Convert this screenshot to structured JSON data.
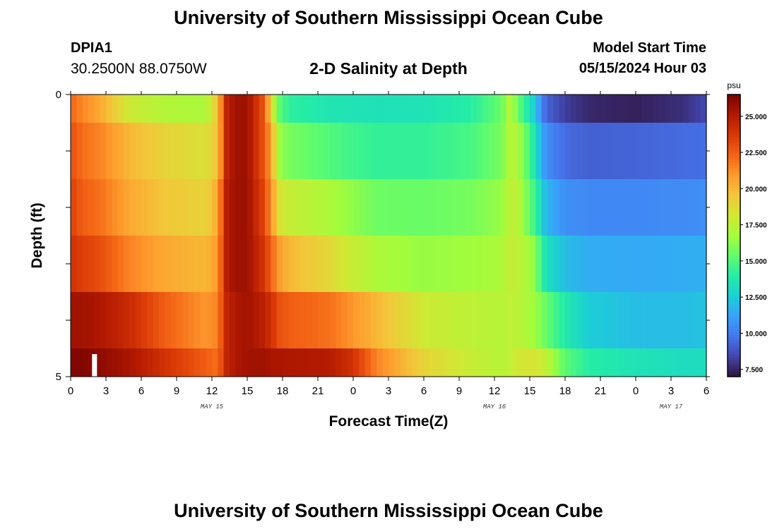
{
  "header": {
    "title": "University of Southern Mississippi Ocean Cube",
    "station_id": "DPIA1",
    "station_coords": "30.2500N  88.0750W",
    "plot_title": "2-D Salinity at Depth",
    "model_start_label": "Model Start Time",
    "model_start_value": "05/15/2024 Hour 03"
  },
  "footer": {
    "title": "University of Southern Mississippi Ocean Cube"
  },
  "chart_data": {
    "type": "heatmap",
    "title": "2-D Salinity at Depth",
    "xlabel": "Forecast Time(Z)",
    "ylabel": "Depth (ft)",
    "x_unit": "hours since 05/15/2024 00Z",
    "xlim": [
      0,
      54
    ],
    "x_ticks": [
      0,
      3,
      6,
      9,
      12,
      15,
      18,
      21,
      24,
      27,
      30,
      33,
      36,
      39,
      42,
      45,
      48,
      51,
      54
    ],
    "x_tick_labels": [
      "0",
      "3",
      "6",
      "9",
      "12",
      "15",
      "18",
      "21",
      "0",
      "3",
      "6",
      "9",
      "12",
      "15",
      "18",
      "21",
      "0",
      "3",
      "6"
    ],
    "date_labels": [
      {
        "text": "MAY 15",
        "x": 12
      },
      {
        "text": "MAY 16",
        "x": 36
      },
      {
        "text": "MAY 17",
        "x": 51
      }
    ],
    "y_tick_labels": [
      "0",
      "5"
    ],
    "ylim": [
      0,
      5
    ],
    "depth_levels": [
      0,
      1,
      2,
      3,
      4,
      5
    ],
    "colorbar": {
      "unit": "psu",
      "range": [
        7,
        26.5
      ],
      "ticks": [
        25.0,
        22.5,
        20.0,
        17.5,
        15.0,
        12.5,
        10.0,
        7.5
      ],
      "tick_labels": [
        "25.000",
        "22.500",
        "20.000",
        "17.500",
        "15.000",
        "12.500",
        "10.000",
        "7.500"
      ],
      "colormap": [
        "#30123b",
        "#4145ab",
        "#4675ed",
        "#39a2fc",
        "#1bcfd4",
        "#24eca6",
        "#61fc6c",
        "#a4fc3b",
        "#d1e834",
        "#f3c63a",
        "#fe9b2d",
        "#f36315",
        "#d93806",
        "#b11901",
        "#7a0402"
      ]
    },
    "value_grid": {
      "x_knots": [
        0,
        1,
        2.5,
        5,
        8,
        11.5,
        12.5,
        13.2,
        14,
        15,
        16.3,
        16.8,
        17.2,
        17.6,
        18.5,
        22,
        24,
        26,
        30,
        34,
        36.6,
        37.4,
        38,
        39.2,
        40,
        40.3,
        40.8,
        42,
        44,
        48,
        52,
        54
      ],
      "layers": [
        {
          "depth_range": [
            0,
            1
          ],
          "values": [
            22.3,
            21.4,
            20.5,
            18.0,
            17.2,
            17.0,
            19.6,
            24.5,
            25.6,
            25.6,
            23.0,
            20.5,
            17.8,
            15.5,
            14.2,
            13.6,
            13.5,
            13.4,
            13.5,
            14.0,
            15.5,
            17.5,
            15.5,
            13.0,
            10.5,
            9.5,
            9.0,
            8.2,
            7.6,
            7.4,
            7.8,
            8.5
          ]
        },
        {
          "depth_range": [
            1,
            2
          ],
          "values": [
            23.0,
            22.0,
            21.5,
            20.0,
            19.0,
            18.5,
            19.5,
            24.5,
            25.6,
            25.6,
            23.0,
            21.5,
            19.6,
            16.8,
            15.8,
            15.0,
            14.6,
            14.3,
            14.3,
            14.8,
            15.8,
            17.5,
            17.0,
            14.2,
            11.6,
            10.8,
            10.3,
            9.5,
            9.2,
            9.3,
            9.5,
            9.6
          ]
        },
        {
          "depth_range": [
            2,
            3
          ],
          "values": [
            23.5,
            22.5,
            22.0,
            20.5,
            19.5,
            19.0,
            20.5,
            24.8,
            25.6,
            25.6,
            23.5,
            22.0,
            20.5,
            18.5,
            17.8,
            17.0,
            16.3,
            15.6,
            15.5,
            15.8,
            16.5,
            17.6,
            17.4,
            15.0,
            13.0,
            12.0,
            11.5,
            10.6,
            10.4,
            10.4,
            10.5,
            10.6
          ]
        },
        {
          "depth_range": [
            3,
            4
          ],
          "values": [
            24.0,
            23.5,
            23.0,
            21.5,
            20.5,
            20.0,
            21.0,
            24.8,
            25.6,
            25.6,
            24.0,
            23.0,
            22.0,
            21.0,
            20.0,
            18.8,
            17.8,
            17.0,
            16.5,
            16.7,
            17.0,
            17.8,
            17.6,
            16.6,
            14.6,
            13.6,
            13.0,
            12.0,
            11.5,
            11.4,
            11.5,
            11.6
          ]
        },
        {
          "depth_range": [
            4,
            5
          ],
          "values": [
            25.5,
            25.5,
            25.2,
            24.3,
            22.5,
            21.0,
            21.5,
            24.5,
            25.2,
            25.5,
            24.8,
            24.3,
            23.8,
            23.0,
            22.5,
            22.0,
            21.0,
            20.0,
            18.0,
            17.5,
            17.3,
            17.6,
            17.4,
            16.8,
            16.0,
            15.6,
            15.0,
            13.8,
            12.5,
            12.0,
            12.0,
            12.2
          ]
        },
        {
          "depth_range": [
            5,
            6
          ],
          "values": [
            26.3,
            26.3,
            26.0,
            25.3,
            24.0,
            22.5,
            22.0,
            24.5,
            25.2,
            25.5,
            25.5,
            25.4,
            25.3,
            25.3,
            25.2,
            25.0,
            24.0,
            21.5,
            19.0,
            17.8,
            17.3,
            17.6,
            18.2,
            18.3,
            18.0,
            17.6,
            17.0,
            15.2,
            14.0,
            13.5,
            13.2,
            13.2
          ]
        }
      ]
    },
    "marker": {
      "x": 2,
      "type": "white vertical bar"
    }
  }
}
